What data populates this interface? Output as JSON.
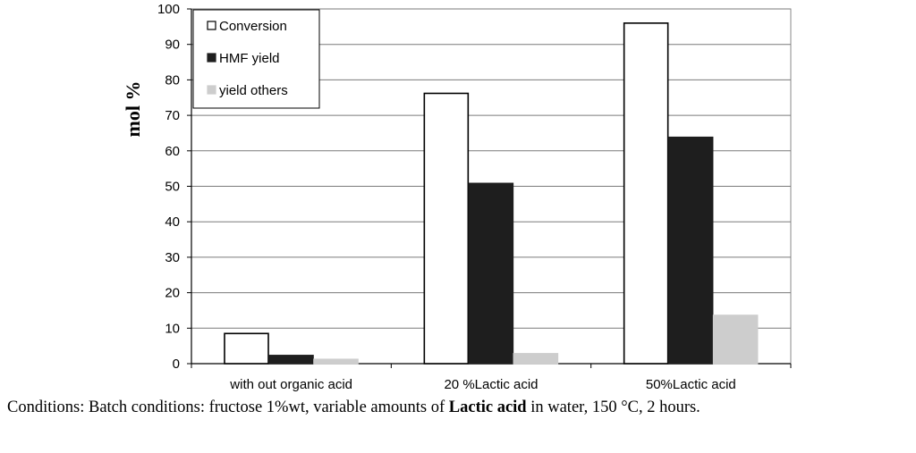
{
  "chart_data": {
    "type": "bar",
    "ylabel": "mol %",
    "xlabel": "",
    "ylim": [
      0,
      100
    ],
    "y_ticks": [
      "0",
      "10",
      "20",
      "30",
      "40",
      "50",
      "60",
      "70",
      "80",
      "90",
      "100"
    ],
    "grid": true,
    "legend_position": "top-left",
    "categories": [
      "with out organic acid",
      "20 %Lactic acid",
      "50%Lactic acid"
    ],
    "series": [
      {
        "name": "Conversion",
        "values": [
          8.5,
          76.2,
          96.0
        ],
        "fill": "#ffffff",
        "stroke": "#000000"
      },
      {
        "name": "HMF yield",
        "values": [
          2.3,
          50.8,
          63.8
        ],
        "fill": "#1e1e1e",
        "stroke": "#1e1e1e"
      },
      {
        "name": "yield others",
        "values": [
          1.2,
          2.8,
          13.6
        ],
        "fill": "#cdcdcd",
        "stroke": "#cdcdcd"
      }
    ]
  },
  "caption": {
    "prefix": "Conditions: Batch conditions: fructose 1%wt, variable amounts of ",
    "bold": "Lactic acid",
    "suffix": " in water, 150 °C, 2 hours."
  }
}
